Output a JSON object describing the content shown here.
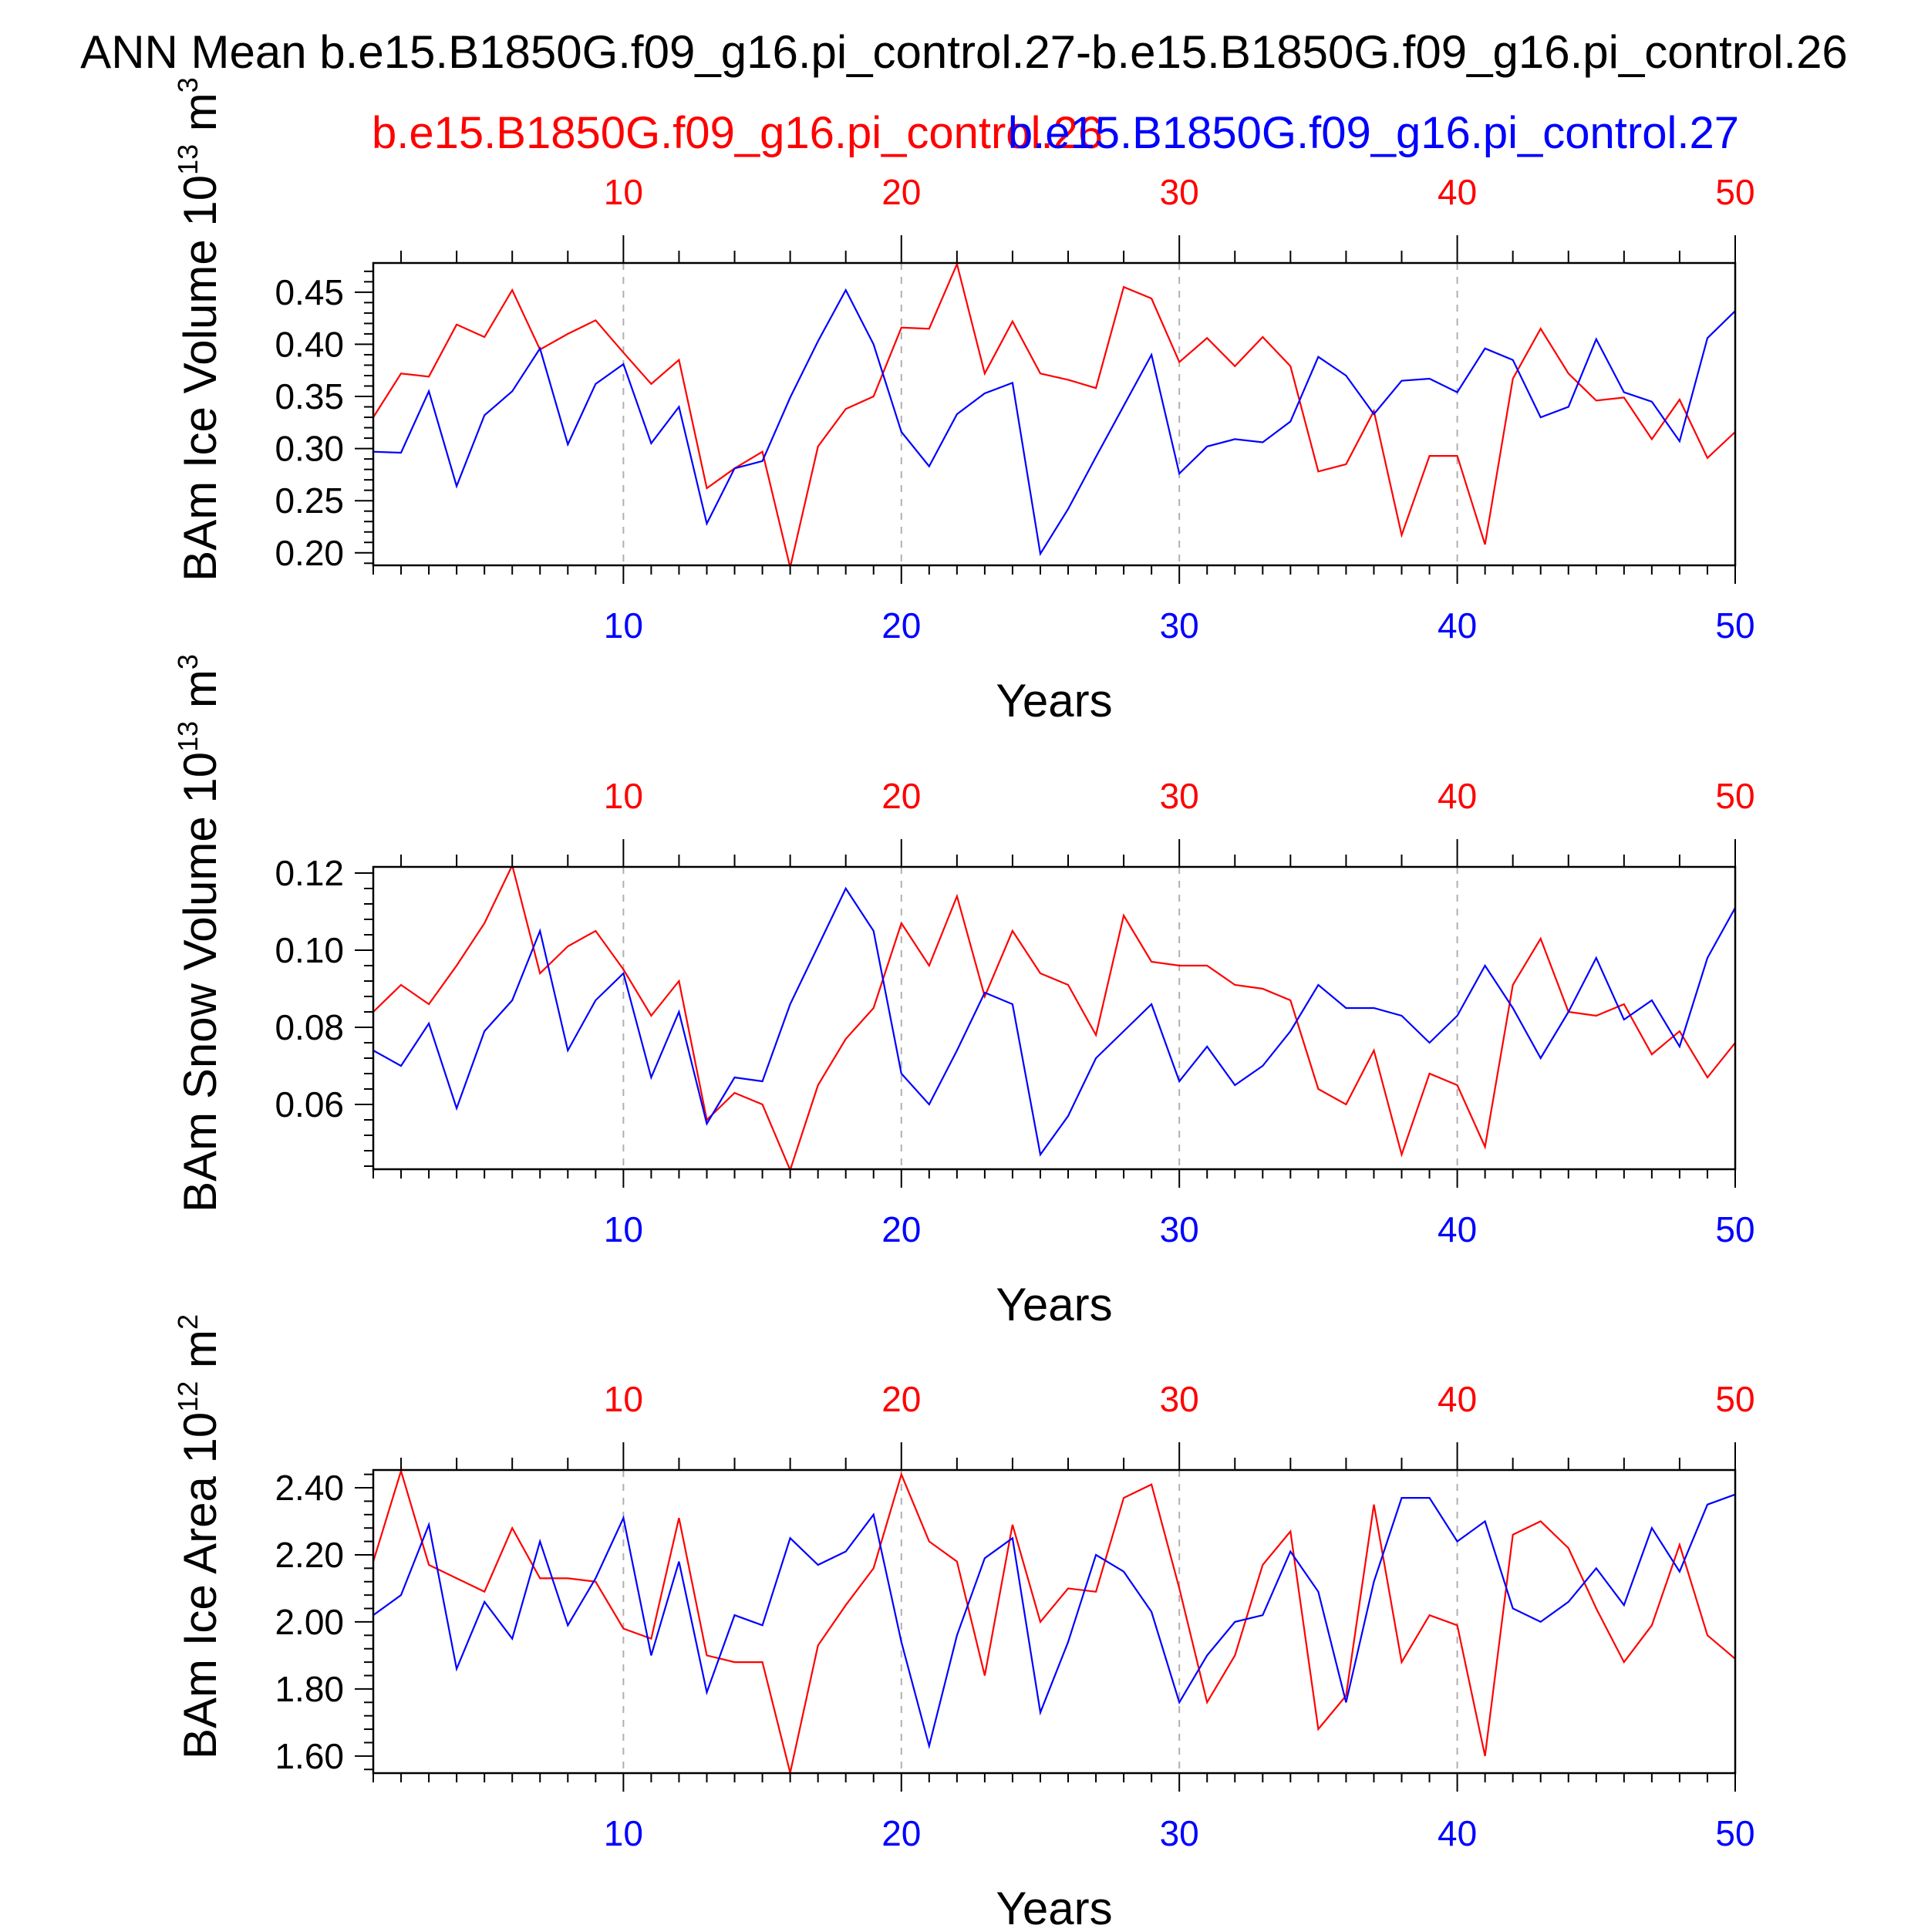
{
  "title": "ANN Mean b.e15.B1850G.f09_g16.pi_control.27-b.e15.B1850G.f09_g16.pi_control.26",
  "legend": {
    "case_red": "b.e15.B1850G.f09_g16.pi_control.26",
    "case_blue": "b.e15.B1850G.f09_g16.pi_control.27"
  },
  "colors": {
    "red": "#ff0000",
    "blue": "#0000ff",
    "axis": "#000000",
    "grid": "#b0b0b0"
  },
  "chart_data": [
    {
      "type": "line",
      "ylabel": "BAm Ice Volume",
      "yunit_base": "10",
      "yunit_exp": "13",
      "yunit_tail": "m",
      "yunit_tail_exp": "3",
      "xlabel": "Years",
      "xlim": [
        1,
        50
      ],
      "ylim": [
        0.188,
        0.478
      ],
      "xticks": [
        10,
        20,
        30,
        40,
        50
      ],
      "yticks": [
        0.2,
        0.25,
        0.3,
        0.35,
        0.4,
        0.45
      ],
      "ytick_labels": [
        "0.20",
        "0.25",
        "0.30",
        "0.35",
        "0.40",
        "0.45"
      ],
      "grid": "vertical dashed at major x ticks",
      "x": [
        1,
        2,
        3,
        4,
        5,
        6,
        7,
        8,
        9,
        10,
        11,
        12,
        13,
        14,
        15,
        16,
        17,
        18,
        19,
        20,
        21,
        22,
        23,
        24,
        25,
        26,
        27,
        28,
        29,
        30,
        31,
        32,
        33,
        34,
        35,
        36,
        37,
        38,
        39,
        40,
        41,
        42,
        43,
        44,
        45,
        46,
        47,
        48,
        49,
        50
      ],
      "series": [
        {
          "name": "b.e15.B1850G.f09_g16.pi_control.26",
          "color": "red",
          "values": [
            0.33,
            0.372,
            0.369,
            0.419,
            0.407,
            0.452,
            0.395,
            0.41,
            0.423,
            0.392,
            0.362,
            0.385,
            0.262,
            0.281,
            0.297,
            0.186,
            0.302,
            0.338,
            0.35,
            0.416,
            0.415,
            0.477,
            0.372,
            0.422,
            0.372,
            0.366,
            0.358,
            0.455,
            0.444,
            0.383,
            0.406,
            0.379,
            0.407,
            0.379,
            0.278,
            0.285,
            0.336,
            0.217,
            0.293,
            0.293,
            0.208,
            0.367,
            0.415,
            0.372,
            0.346,
            0.349,
            0.309,
            0.347,
            0.291,
            0.316
          ]
        },
        {
          "name": "b.e15.B1850G.f09_g16.pi_control.27",
          "color": "blue",
          "values": [
            0.297,
            0.296,
            0.355,
            0.264,
            0.332,
            0.355,
            0.396,
            0.304,
            0.362,
            0.381,
            0.305,
            0.34,
            0.228,
            0.281,
            0.288,
            0.349,
            0.403,
            0.452,
            0.4,
            0.316,
            0.283,
            0.333,
            0.353,
            0.363,
            0.199,
            0.242,
            0.292,
            0.341,
            0.39,
            0.276,
            0.302,
            0.309,
            0.306,
            0.326,
            0.388,
            0.37,
            0.333,
            0.365,
            0.367,
            0.354,
            0.396,
            0.385,
            0.33,
            0.34,
            0.405,
            0.354,
            0.345,
            0.307,
            0.406,
            0.432
          ]
        }
      ]
    },
    {
      "type": "line",
      "ylabel": "BAm Snow Volume",
      "yunit_base": "10",
      "yunit_exp": "13",
      "yunit_tail": "m",
      "yunit_tail_exp": "3",
      "xlabel": "Years",
      "xlim": [
        1,
        50
      ],
      "ylim": [
        0.0432,
        0.1216
      ],
      "xticks": [
        10,
        20,
        30,
        40,
        50
      ],
      "yticks": [
        0.06,
        0.08,
        0.1,
        0.12
      ],
      "ytick_labels": [
        "0.06",
        "0.08",
        "0.10",
        "0.12"
      ],
      "grid": "vertical dashed at major x ticks",
      "x": [
        1,
        2,
        3,
        4,
        5,
        6,
        7,
        8,
        9,
        10,
        11,
        12,
        13,
        14,
        15,
        16,
        17,
        18,
        19,
        20,
        21,
        22,
        23,
        24,
        25,
        26,
        27,
        28,
        29,
        30,
        31,
        32,
        33,
        34,
        35,
        36,
        37,
        38,
        39,
        40,
        41,
        42,
        43,
        44,
        45,
        46,
        47,
        48,
        49,
        50
      ],
      "series": [
        {
          "name": "b.e15.B1850G.f09_g16.pi_control.26",
          "color": "red",
          "values": [
            0.084,
            0.091,
            0.086,
            0.096,
            0.107,
            0.122,
            0.094,
            0.101,
            0.105,
            0.095,
            0.083,
            0.092,
            0.056,
            0.063,
            0.06,
            0.043,
            0.065,
            0.077,
            0.085,
            0.107,
            0.096,
            0.114,
            0.088,
            0.105,
            0.094,
            0.091,
            0.078,
            0.109,
            0.097,
            0.096,
            0.096,
            0.091,
            0.09,
            0.087,
            0.064,
            0.06,
            0.074,
            0.047,
            0.068,
            0.065,
            0.049,
            0.091,
            0.103,
            0.084,
            0.083,
            0.086,
            0.073,
            0.079,
            0.067,
            0.076
          ]
        },
        {
          "name": "b.e15.B1850G.f09_g16.pi_control.27",
          "color": "blue",
          "values": [
            0.074,
            0.07,
            0.081,
            0.059,
            0.079,
            0.087,
            0.105,
            0.074,
            0.087,
            0.094,
            0.067,
            0.084,
            0.055,
            0.067,
            0.066,
            0.086,
            0.101,
            0.116,
            0.105,
            0.068,
            0.06,
            0.074,
            0.089,
            0.086,
            0.047,
            0.057,
            0.072,
            0.079,
            0.086,
            0.066,
            0.075,
            0.065,
            0.07,
            0.079,
            0.091,
            0.085,
            0.085,
            0.083,
            0.076,
            0.083,
            0.096,
            0.085,
            0.072,
            0.084,
            0.098,
            0.082,
            0.087,
            0.075,
            0.098,
            0.111
          ]
        }
      ]
    },
    {
      "type": "line",
      "ylabel": "BAm Ice Area",
      "yunit_base": "10",
      "yunit_exp": "12",
      "yunit_tail": "m",
      "yunit_tail_exp": "2",
      "xlabel": "Years",
      "xlim": [
        1,
        50
      ],
      "ylim": [
        1.549,
        2.453
      ],
      "xticks": [
        10,
        20,
        30,
        40,
        50
      ],
      "yticks": [
        1.6,
        1.8,
        2.0,
        2.2,
        2.4
      ],
      "ytick_labels": [
        "1.60",
        "1.80",
        "2.00",
        "2.20",
        "2.40"
      ],
      "grid": "vertical dashed at major x ticks",
      "x": [
        1,
        2,
        3,
        4,
        5,
        6,
        7,
        8,
        9,
        10,
        11,
        12,
        13,
        14,
        15,
        16,
        17,
        18,
        19,
        20,
        21,
        22,
        23,
        24,
        25,
        26,
        27,
        28,
        29,
        30,
        31,
        32,
        33,
        34,
        35,
        36,
        37,
        38,
        39,
        40,
        41,
        42,
        43,
        44,
        45,
        46,
        47,
        48,
        49,
        50
      ],
      "series": [
        {
          "name": "b.e15.B1850G.f09_g16.pi_control.26",
          "color": "red",
          "values": [
            2.18,
            2.45,
            2.17,
            2.13,
            2.09,
            2.28,
            2.13,
            2.13,
            2.12,
            1.98,
            1.95,
            2.31,
            1.9,
            1.88,
            1.88,
            1.55,
            1.93,
            2.05,
            2.16,
            2.44,
            2.24,
            2.18,
            1.84,
            2.29,
            2.0,
            2.1,
            2.09,
            2.37,
            2.41,
            2.1,
            1.76,
            1.9,
            2.17,
            2.27,
            1.68,
            1.78,
            2.35,
            1.88,
            2.02,
            1.99,
            1.6,
            2.26,
            2.3,
            2.22,
            2.04,
            1.88,
            1.99,
            2.23,
            1.96,
            1.89
          ]
        },
        {
          "name": "b.e15.B1850G.f09_g16.pi_control.27",
          "color": "blue",
          "values": [
            2.02,
            2.08,
            2.29,
            1.86,
            2.06,
            1.95,
            2.24,
            1.99,
            2.13,
            2.31,
            1.9,
            2.18,
            1.79,
            2.02,
            1.99,
            2.25,
            2.17,
            2.21,
            2.32,
            1.94,
            1.63,
            1.96,
            2.19,
            2.25,
            1.73,
            1.94,
            2.2,
            2.15,
            2.03,
            1.76,
            1.9,
            2.0,
            2.02,
            2.21,
            2.09,
            1.76,
            2.12,
            2.37,
            2.37,
            2.24,
            2.3,
            2.04,
            2.0,
            2.06,
            2.16,
            2.05,
            2.28,
            2.15,
            2.35,
            2.38
          ]
        }
      ]
    }
  ]
}
